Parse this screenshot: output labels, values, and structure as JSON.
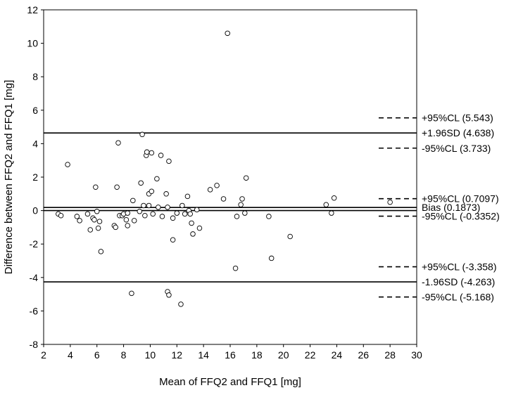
{
  "chart_data": {
    "type": "scatter",
    "xlabel": "Mean of FFQ2 and FFQ1 [mg]",
    "ylabel": "Difference between FFQ2 and FFQ1 [mg]",
    "xlim": [
      2,
      30
    ],
    "ylim": [
      -8,
      12
    ],
    "x_ticks": [
      2,
      4,
      6,
      8,
      10,
      12,
      14,
      16,
      18,
      20,
      22,
      24,
      26,
      28,
      30
    ],
    "y_ticks": [
      -8,
      -6,
      -4,
      -2,
      0,
      2,
      4,
      6,
      8,
      10,
      12
    ],
    "grid": false,
    "points": [
      {
        "x": 3.1,
        "y": -0.2
      },
      {
        "x": 3.3,
        "y": -0.3
      },
      {
        "x": 3.8,
        "y": 2.75
      },
      {
        "x": 4.5,
        "y": -0.35
      },
      {
        "x": 4.7,
        "y": -0.6
      },
      {
        "x": 5.3,
        "y": -0.2
      },
      {
        "x": 5.5,
        "y": -1.15
      },
      {
        "x": 5.7,
        "y": -0.45
      },
      {
        "x": 5.8,
        "y": -0.55
      },
      {
        "x": 5.9,
        "y": 1.4
      },
      {
        "x": 6.0,
        "y": -0.05
      },
      {
        "x": 6.1,
        "y": -1.05
      },
      {
        "x": 6.2,
        "y": -0.65
      },
      {
        "x": 6.3,
        "y": -2.45
      },
      {
        "x": 7.3,
        "y": -0.9
      },
      {
        "x": 7.4,
        "y": -1.0
      },
      {
        "x": 7.5,
        "y": 1.4
      },
      {
        "x": 7.6,
        "y": 4.05
      },
      {
        "x": 7.7,
        "y": -0.3
      },
      {
        "x": 7.9,
        "y": -0.3
      },
      {
        "x": 8.0,
        "y": -0.2
      },
      {
        "x": 8.2,
        "y": -0.55
      },
      {
        "x": 8.3,
        "y": -0.15
      },
      {
        "x": 8.3,
        "y": -0.9
      },
      {
        "x": 8.6,
        "y": -4.95
      },
      {
        "x": 8.7,
        "y": 0.6
      },
      {
        "x": 8.8,
        "y": -0.6
      },
      {
        "x": 9.2,
        "y": -0.05
      },
      {
        "x": 9.3,
        "y": 1.65
      },
      {
        "x": 9.4,
        "y": 4.55
      },
      {
        "x": 9.5,
        "y": 0.3
      },
      {
        "x": 9.6,
        "y": -0.3
      },
      {
        "x": 9.7,
        "y": 3.3
      },
      {
        "x": 9.75,
        "y": 3.5
      },
      {
        "x": 9.9,
        "y": 1.0
      },
      {
        "x": 9.9,
        "y": 0.3
      },
      {
        "x": 10.1,
        "y": 3.45
      },
      {
        "x": 10.1,
        "y": 1.15
      },
      {
        "x": 10.2,
        "y": -0.2
      },
      {
        "x": 10.5,
        "y": 1.9
      },
      {
        "x": 10.6,
        "y": 0.2
      },
      {
        "x": 10.8,
        "y": 3.3
      },
      {
        "x": 10.9,
        "y": -0.35
      },
      {
        "x": 11.2,
        "y": 1.0
      },
      {
        "x": 11.3,
        "y": 0.2
      },
      {
        "x": 11.3,
        "y": -4.85
      },
      {
        "x": 11.4,
        "y": -5.05
      },
      {
        "x": 11.4,
        "y": 2.95
      },
      {
        "x": 11.7,
        "y": -0.45
      },
      {
        "x": 11.7,
        "y": -1.75
      },
      {
        "x": 12.0,
        "y": -0.15
      },
      {
        "x": 12.3,
        "y": -5.6
      },
      {
        "x": 12.4,
        "y": 0.3
      },
      {
        "x": 12.6,
        "y": -0.2
      },
      {
        "x": 12.8,
        "y": 0.85
      },
      {
        "x": 12.9,
        "y": 0.0
      },
      {
        "x": 13.0,
        "y": -0.2
      },
      {
        "x": 13.1,
        "y": -0.75
      },
      {
        "x": 13.2,
        "y": -1.4
      },
      {
        "x": 13.5,
        "y": 0.05
      },
      {
        "x": 13.7,
        "y": -1.05
      },
      {
        "x": 14.5,
        "y": 1.25
      },
      {
        "x": 15.0,
        "y": 1.5
      },
      {
        "x": 15.5,
        "y": 0.7
      },
      {
        "x": 15.8,
        "y": 10.6
      },
      {
        "x": 16.4,
        "y": -3.45
      },
      {
        "x": 16.5,
        "y": -0.35
      },
      {
        "x": 16.8,
        "y": 0.35
      },
      {
        "x": 16.9,
        "y": 0.7
      },
      {
        "x": 17.1,
        "y": -0.15
      },
      {
        "x": 17.2,
        "y": 1.95
      },
      {
        "x": 18.9,
        "y": -0.35
      },
      {
        "x": 19.1,
        "y": -2.85
      },
      {
        "x": 20.5,
        "y": -1.55
      },
      {
        "x": 23.2,
        "y": 0.35
      },
      {
        "x": 23.6,
        "y": -0.15
      },
      {
        "x": 23.8,
        "y": 0.75
      },
      {
        "x": 28.0,
        "y": 0.5
      }
    ],
    "reference_lines": [
      {
        "value": 4.638,
        "style": "solid",
        "label": "+1.96SD (4.638)"
      },
      {
        "value": 0.1873,
        "style": "solid",
        "label": "Bias (0.1873)"
      },
      {
        "value": 0,
        "style": "solid",
        "label": ""
      },
      {
        "value": -4.263,
        "style": "solid",
        "label": "-1.96SD (-4.263)"
      }
    ],
    "confidence_limits": [
      {
        "value": 5.543,
        "label": "+95%CL (5.543)"
      },
      {
        "value": 3.733,
        "label": "-95%CL (3.733)"
      },
      {
        "value": 0.7097,
        "label": "+95%CL (0.7097)"
      },
      {
        "value": -0.3352,
        "label": "-95%CL (-0.3352)"
      },
      {
        "value": -3.358,
        "label": "+95%CL (-3.358)"
      },
      {
        "value": -5.168,
        "label": "-95%CL (-5.168)"
      }
    ]
  }
}
